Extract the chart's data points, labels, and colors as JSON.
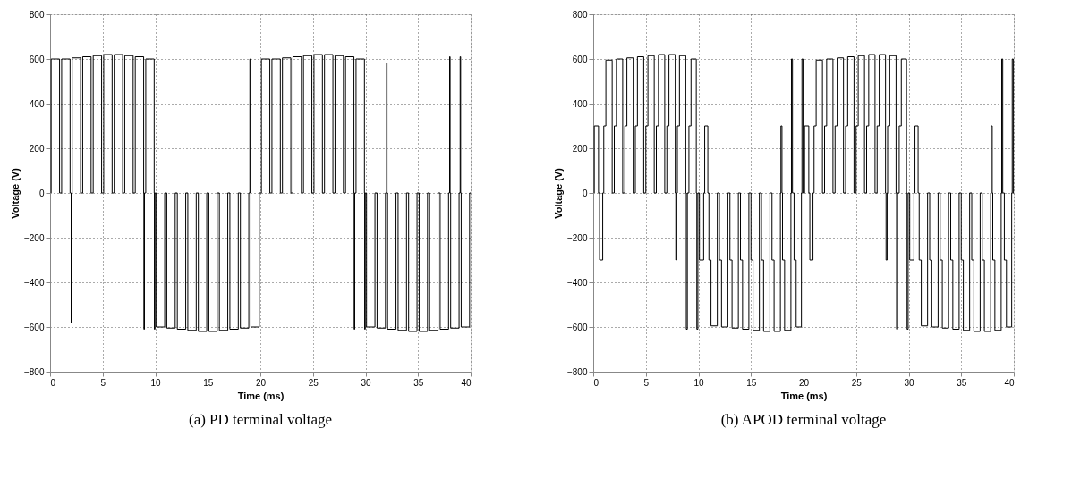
{
  "chart_data": [
    {
      "type": "line",
      "title": "(a) PD terminal voltage",
      "xlabel": "Time (ms)",
      "ylabel": "Voltage (V)",
      "xlim": [
        0,
        40
      ],
      "xticks": [
        0,
        5,
        10,
        15,
        20,
        25,
        30,
        35,
        40
      ],
      "ylim": [
        -800,
        800
      ],
      "yticks": [
        -800,
        -600,
        -400,
        -200,
        0,
        200,
        400,
        600,
        800
      ],
      "grid": true,
      "marker": "none",
      "line_style": "solid",
      "x": [
        0.1,
        0.1,
        0.9,
        0.9,
        1.1,
        1.1,
        1.9,
        1.9,
        2.0,
        2.0,
        2.05,
        2.05,
        2.1,
        2.1,
        2.9,
        2.9,
        3.1,
        3.1,
        3.9,
        3.9,
        4.1,
        4.1,
        4.9,
        4.9,
        5.1,
        5.1,
        5.9,
        5.9,
        6.1,
        6.1,
        6.9,
        6.9,
        7.1,
        7.1,
        7.9,
        7.9,
        8.1,
        8.1,
        8.9,
        8.9,
        8.92,
        8.92,
        8.98,
        8.98,
        9.1,
        9.1,
        9.9,
        9.9,
        9.92,
        9.92,
        9.98,
        9.98,
        10.1,
        10.1,
        10.9,
        10.9,
        11.1,
        11.1,
        11.9,
        11.9,
        12.1,
        12.1,
        12.9,
        12.9,
        13.1,
        13.1,
        13.9,
        13.9,
        14.1,
        14.1,
        14.9,
        14.9,
        15.1,
        15.1,
        15.9,
        15.9,
        16.1,
        16.1,
        16.9,
        16.9,
        17.1,
        17.1,
        17.9,
        17.9,
        18.1,
        18.1,
        18.9,
        18.9,
        19.0,
        19.0,
        19.05,
        19.05,
        19.1,
        19.1,
        19.9,
        19.9,
        20.1,
        20.1,
        20.9,
        20.9,
        21.1,
        21.1,
        21.9,
        21.9,
        22.1,
        22.1,
        22.9,
        22.9,
        23.1,
        23.1,
        23.9,
        23.9,
        24.1,
        24.1,
        24.9,
        24.9,
        25.1,
        25.1,
        25.9,
        25.9,
        26.1,
        26.1,
        26.9,
        26.9,
        27.1,
        27.1,
        27.9,
        27.9,
        28.1,
        28.1,
        28.9,
        28.9,
        28.92,
        28.92,
        28.98,
        28.98,
        29.1,
        29.1,
        29.9,
        29.9,
        29.92,
        29.92,
        29.98,
        29.98,
        30.1,
        30.1,
        30.9,
        30.9,
        31.1,
        31.1,
        31.9,
        31.9,
        32.0,
        32.0,
        32.05,
        32.05,
        32.1,
        32.1,
        32.9,
        32.9,
        33.1,
        33.1,
        33.9,
        33.9,
        34.1,
        34.1,
        34.9,
        34.9,
        35.1,
        35.1,
        35.9,
        35.9,
        36.1,
        36.1,
        36.9,
        36.9,
        37.1,
        37.1,
        37.9,
        37.9,
        38.0,
        38.0,
        38.05,
        38.05,
        38.1,
        38.1,
        38.9,
        38.9,
        39.0,
        39.0,
        39.05,
        39.05,
        39.1,
        39.1,
        39.9,
        39.9,
        40
      ],
      "series": [
        {
          "color": "#000000",
          "values": [
            0,
            600,
            600,
            0,
            0,
            600,
            600,
            0,
            0,
            -580,
            -580,
            0,
            0,
            605,
            605,
            0,
            0,
            610,
            610,
            0,
            0,
            615,
            615,
            0,
            0,
            620,
            620,
            0,
            0,
            620,
            620,
            0,
            0,
            615,
            615,
            0,
            0,
            610,
            610,
            0,
            0,
            -610,
            -610,
            0,
            0,
            600,
            600,
            0,
            0,
            -610,
            -610,
            0,
            0,
            -600,
            -600,
            0,
            0,
            -605,
            -605,
            0,
            0,
            -610,
            -610,
            0,
            0,
            -615,
            -615,
            0,
            0,
            -620,
            -620,
            0,
            0,
            -620,
            -620,
            0,
            0,
            -615,
            -615,
            0,
            0,
            -610,
            -610,
            0,
            0,
            -605,
            -605,
            0,
            0,
            600,
            600,
            0,
            0,
            -600,
            -600,
            0,
            0,
            600,
            600,
            0,
            0,
            600,
            600,
            0,
            0,
            605,
            605,
            0,
            0,
            610,
            610,
            0,
            0,
            615,
            615,
            0,
            0,
            620,
            620,
            0,
            0,
            620,
            620,
            0,
            0,
            615,
            615,
            0,
            0,
            610,
            610,
            0,
            0,
            -610,
            -610,
            0,
            0,
            600,
            600,
            0,
            0,
            -610,
            -610,
            0,
            0,
            -600,
            -600,
            0,
            0,
            -605,
            -605,
            0,
            0,
            580,
            580,
            0,
            0,
            -610,
            -610,
            0,
            0,
            -615,
            -615,
            0,
            0,
            -620,
            -620,
            0,
            0,
            -620,
            -620,
            0,
            0,
            -615,
            -615,
            0,
            0,
            -610,
            -610,
            0,
            0,
            610,
            610,
            0,
            0,
            -605,
            -605,
            0,
            0,
            610,
            610,
            0,
            0,
            -600,
            -600,
            0,
            0
          ]
        }
      ]
    },
    {
      "type": "line",
      "title": "(b) APOD terminal voltage",
      "xlabel": "Time (ms)",
      "ylabel": "Voltage (V)",
      "xlim": [
        0,
        40
      ],
      "xticks": [
        0,
        5,
        10,
        15,
        20,
        25,
        30,
        35,
        40
      ],
      "ylim": [
        -800,
        800
      ],
      "yticks": [
        -800,
        -600,
        -400,
        -200,
        0,
        200,
        400,
        600,
        800
      ],
      "grid": true,
      "marker": "none",
      "line_style": "solid",
      "x": [
        0.1,
        0.1,
        0.5,
        0.5,
        0.6,
        0.6,
        0.9,
        0.9,
        1,
        1,
        1.2,
        1.2,
        1.8,
        1.8,
        2,
        2,
        2.2,
        2.2,
        2.8,
        2.8,
        3,
        3,
        3.2,
        3.2,
        3.8,
        3.8,
        4,
        4,
        4.2,
        4.2,
        4.8,
        4.8,
        5,
        5,
        5.2,
        5.2,
        5.8,
        5.8,
        6,
        6,
        6.2,
        6.2,
        6.8,
        6.8,
        7,
        7,
        7.2,
        7.2,
        7.8,
        7.8,
        7.85,
        7.85,
        7.95,
        7.95,
        8,
        8,
        8.2,
        8.2,
        8.8,
        8.8,
        8.85,
        8.85,
        8.95,
        8.95,
        9.1,
        9.1,
        9.3,
        9.3,
        9.8,
        9.8,
        9.85,
        9.85,
        9.95,
        9.95,
        10.1,
        10.1,
        10.5,
        10.5,
        10.6,
        10.6,
        10.9,
        10.9,
        11,
        11,
        11.2,
        11.2,
        11.8,
        11.8,
        12,
        12,
        12.2,
        12.2,
        12.8,
        12.8,
        13,
        13,
        13.2,
        13.2,
        13.8,
        13.8,
        14,
        14,
        14.2,
        14.2,
        14.8,
        14.8,
        15,
        15,
        15.2,
        15.2,
        15.8,
        15.8,
        16,
        16,
        16.2,
        16.2,
        16.8,
        16.8,
        17,
        17,
        17.2,
        17.2,
        17.8,
        17.8,
        17.85,
        17.85,
        17.95,
        17.95,
        18,
        18,
        18.2,
        18.2,
        18.8,
        18.8,
        18.85,
        18.85,
        18.95,
        18.95,
        19.1,
        19.1,
        19.3,
        19.3,
        19.8,
        19.8,
        19.85,
        19.85,
        19.95,
        19.95,
        20.1,
        20.1,
        20.5,
        20.5,
        20.6,
        20.6,
        20.9,
        20.9,
        21,
        21,
        21.2,
        21.2,
        21.8,
        21.8,
        22,
        22,
        22.2,
        22.2,
        22.8,
        22.8,
        23,
        23,
        23.2,
        23.2,
        23.8,
        23.8,
        24,
        24,
        24.2,
        24.2,
        24.8,
        24.8,
        25,
        25,
        25.2,
        25.2,
        25.8,
        25.8,
        26,
        26,
        26.2,
        26.2,
        26.8,
        26.8,
        27,
        27,
        27.2,
        27.2,
        27.8,
        27.8,
        27.85,
        27.85,
        27.95,
        27.95,
        28,
        28,
        28.2,
        28.2,
        28.8,
        28.8,
        28.85,
        28.85,
        28.95,
        28.95,
        29.1,
        29.1,
        29.3,
        29.3,
        29.8,
        29.8,
        29.85,
        29.85,
        29.95,
        29.95,
        30.1,
        30.1,
        30.5,
        30.5,
        30.6,
        30.6,
        30.9,
        30.9,
        31,
        31,
        31.2,
        31.2,
        31.8,
        31.8,
        32,
        32,
        32.2,
        32.2,
        32.8,
        32.8,
        33,
        33,
        33.2,
        33.2,
        33.8,
        33.8,
        34,
        34,
        34.2,
        34.2,
        34.8,
        34.8,
        35,
        35,
        35.2,
        35.2,
        35.8,
        35.8,
        36,
        36,
        36.2,
        36.2,
        36.8,
        36.8,
        37,
        37,
        37.2,
        37.2,
        37.8,
        37.8,
        37.85,
        37.85,
        37.95,
        37.95,
        38,
        38,
        38.2,
        38.2,
        38.8,
        38.8,
        38.85,
        38.85,
        38.95,
        38.95,
        39.1,
        39.1,
        39.3,
        39.3,
        39.8,
        39.8,
        39.85,
        39.85,
        39.95,
        39.95,
        40
      ],
      "series": [
        {
          "color": "#000000",
          "values": [
            0,
            300,
            300,
            0,
            0,
            -300,
            -300,
            0,
            0,
            300,
            300,
            595,
            595,
            0,
            0,
            300,
            300,
            600,
            600,
            0,
            0,
            300,
            300,
            605,
            605,
            0,
            0,
            300,
            300,
            610,
            610,
            0,
            0,
            300,
            300,
            615,
            615,
            0,
            0,
            300,
            300,
            620,
            620,
            0,
            0,
            300,
            300,
            620,
            620,
            0,
            0,
            -300,
            -300,
            0,
            0,
            300,
            300,
            615,
            615,
            0,
            0,
            -610,
            -610,
            0,
            0,
            300,
            300,
            600,
            600,
            0,
            0,
            -610,
            -610,
            0,
            0,
            -300,
            -300,
            0,
            0,
            300,
            300,
            0,
            0,
            -300,
            -300,
            -595,
            -595,
            0,
            0,
            -300,
            -300,
            -600,
            -600,
            0,
            0,
            -300,
            -300,
            -605,
            -605,
            0,
            0,
            -300,
            -300,
            -610,
            -610,
            0,
            0,
            -300,
            -300,
            -615,
            -615,
            0,
            0,
            -300,
            -300,
            -620,
            -620,
            0,
            0,
            -300,
            -300,
            -620,
            -620,
            0,
            0,
            300,
            300,
            0,
            0,
            -300,
            -300,
            -615,
            -615,
            0,
            0,
            600,
            600,
            0,
            0,
            -300,
            -300,
            -600,
            -600,
            0,
            0,
            600,
            600,
            0,
            0,
            300,
            300,
            0,
            0,
            -300,
            -300,
            0,
            0,
            300,
            300,
            595,
            595,
            0,
            0,
            300,
            300,
            600,
            600,
            0,
            0,
            300,
            300,
            605,
            605,
            0,
            0,
            300,
            300,
            610,
            610,
            0,
            0,
            300,
            300,
            615,
            615,
            0,
            0,
            300,
            300,
            620,
            620,
            0,
            0,
            300,
            300,
            620,
            620,
            0,
            0,
            -300,
            -300,
            0,
            0,
            300,
            300,
            615,
            615,
            0,
            0,
            -610,
            -610,
            0,
            0,
            300,
            300,
            600,
            600,
            0,
            0,
            -610,
            -610,
            0,
            0,
            -300,
            -300,
            0,
            0,
            300,
            300,
            0,
            0,
            -300,
            -300,
            -595,
            -595,
            0,
            0,
            -300,
            -300,
            -600,
            -600,
            0,
            0,
            -300,
            -300,
            -605,
            -605,
            0,
            0,
            -300,
            -300,
            -610,
            -610,
            0,
            0,
            -300,
            -300,
            -615,
            -615,
            0,
            0,
            -300,
            -300,
            -620,
            -620,
            0,
            0,
            -300,
            -300,
            -620,
            -620,
            0,
            0,
            300,
            300,
            0,
            0,
            -300,
            -300,
            -615,
            -615,
            0,
            0,
            600,
            600,
            0,
            0,
            -300,
            -300,
            -600,
            -600,
            0,
            0,
            600,
            600,
            0,
            0
          ]
        }
      ]
    }
  ]
}
